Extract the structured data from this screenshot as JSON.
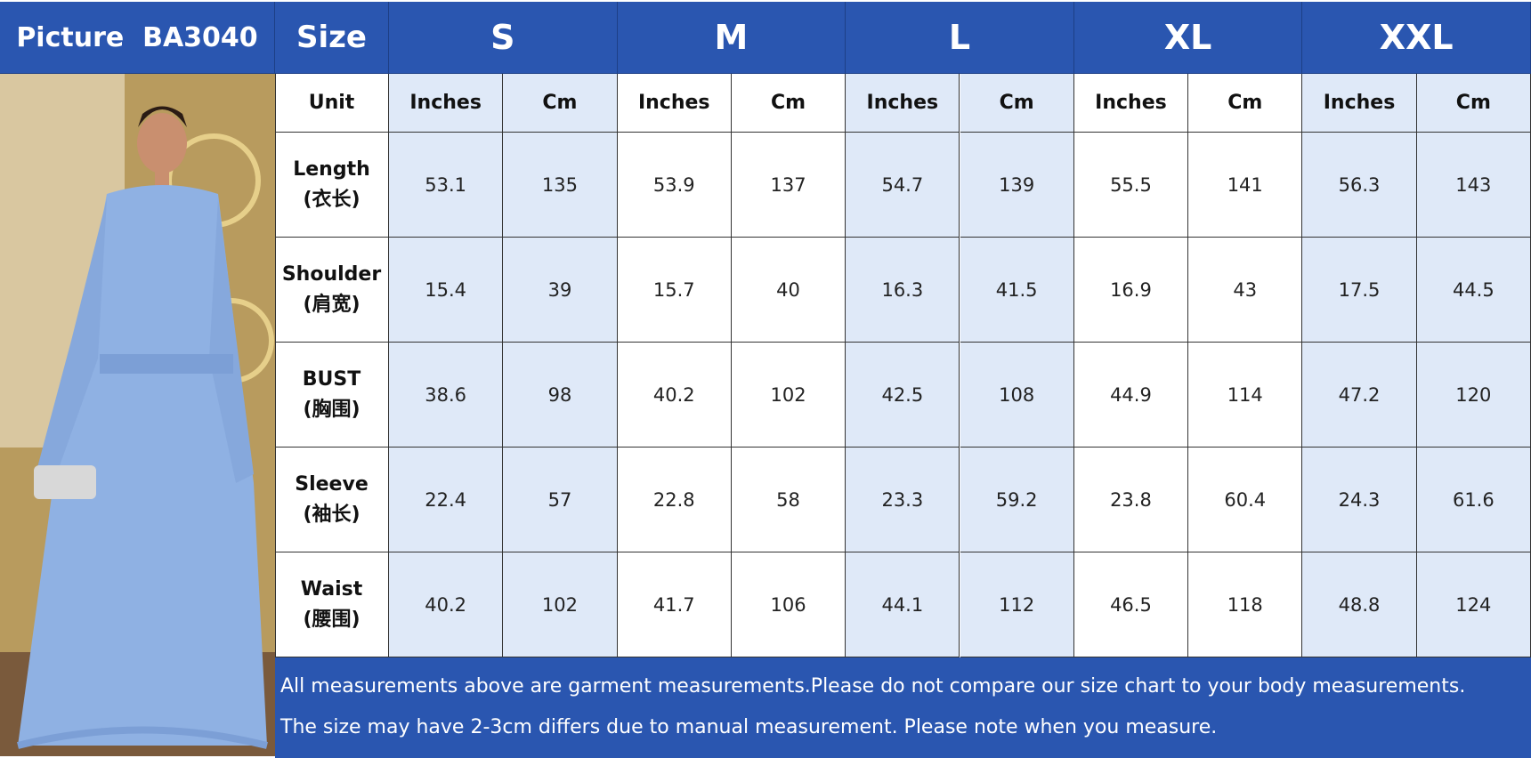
{
  "header": {
    "picture_label": "Picture  BA3040",
    "size_label": "Size",
    "sizes": [
      "S",
      "M",
      "L",
      "XL",
      "XXL"
    ]
  },
  "unit_row": {
    "label": "Unit",
    "units": [
      "Inches",
      "Cm",
      "Inches",
      "Cm",
      "Inches",
      "Cm",
      "Inches",
      "Cm",
      "Inches",
      "Cm"
    ]
  },
  "rows": [
    {
      "label": "Length",
      "label_cn": "(衣长)",
      "values": [
        "53.1",
        "135",
        "53.9",
        "137",
        "54.7",
        "139",
        "55.5",
        "141",
        "56.3",
        "143"
      ]
    },
    {
      "label": "Shoulder",
      "label_cn": "(肩宽)",
      "values": [
        "15.4",
        "39",
        "15.7",
        "40",
        "16.3",
        "41.5",
        "16.9",
        "43",
        "17.5",
        "44.5"
      ]
    },
    {
      "label": "BUST",
      "label_cn": "(胸围)",
      "values": [
        "38.6",
        "98",
        "40.2",
        "102",
        "42.5",
        "108",
        "44.9",
        "114",
        "47.2",
        "120"
      ]
    },
    {
      "label": "Sleeve",
      "label_cn": "(袖长)",
      "values": [
        "22.4",
        "57",
        "22.8",
        "58",
        "23.3",
        "59.2",
        "23.8",
        "60.4",
        "24.3",
        "61.6"
      ]
    },
    {
      "label": "Waist",
      "label_cn": "(腰围)",
      "values": [
        "40.2",
        "102",
        "41.7",
        "106",
        "44.1",
        "112",
        "46.5",
        "118",
        "48.8",
        "124"
      ]
    }
  ],
  "notes": [
    "All measurements above are garment measurements.Please do not compare our size chart to your body measurements.",
    "The size may have 2-3cm differs due to manual measurement. Please note when you measure."
  ]
}
